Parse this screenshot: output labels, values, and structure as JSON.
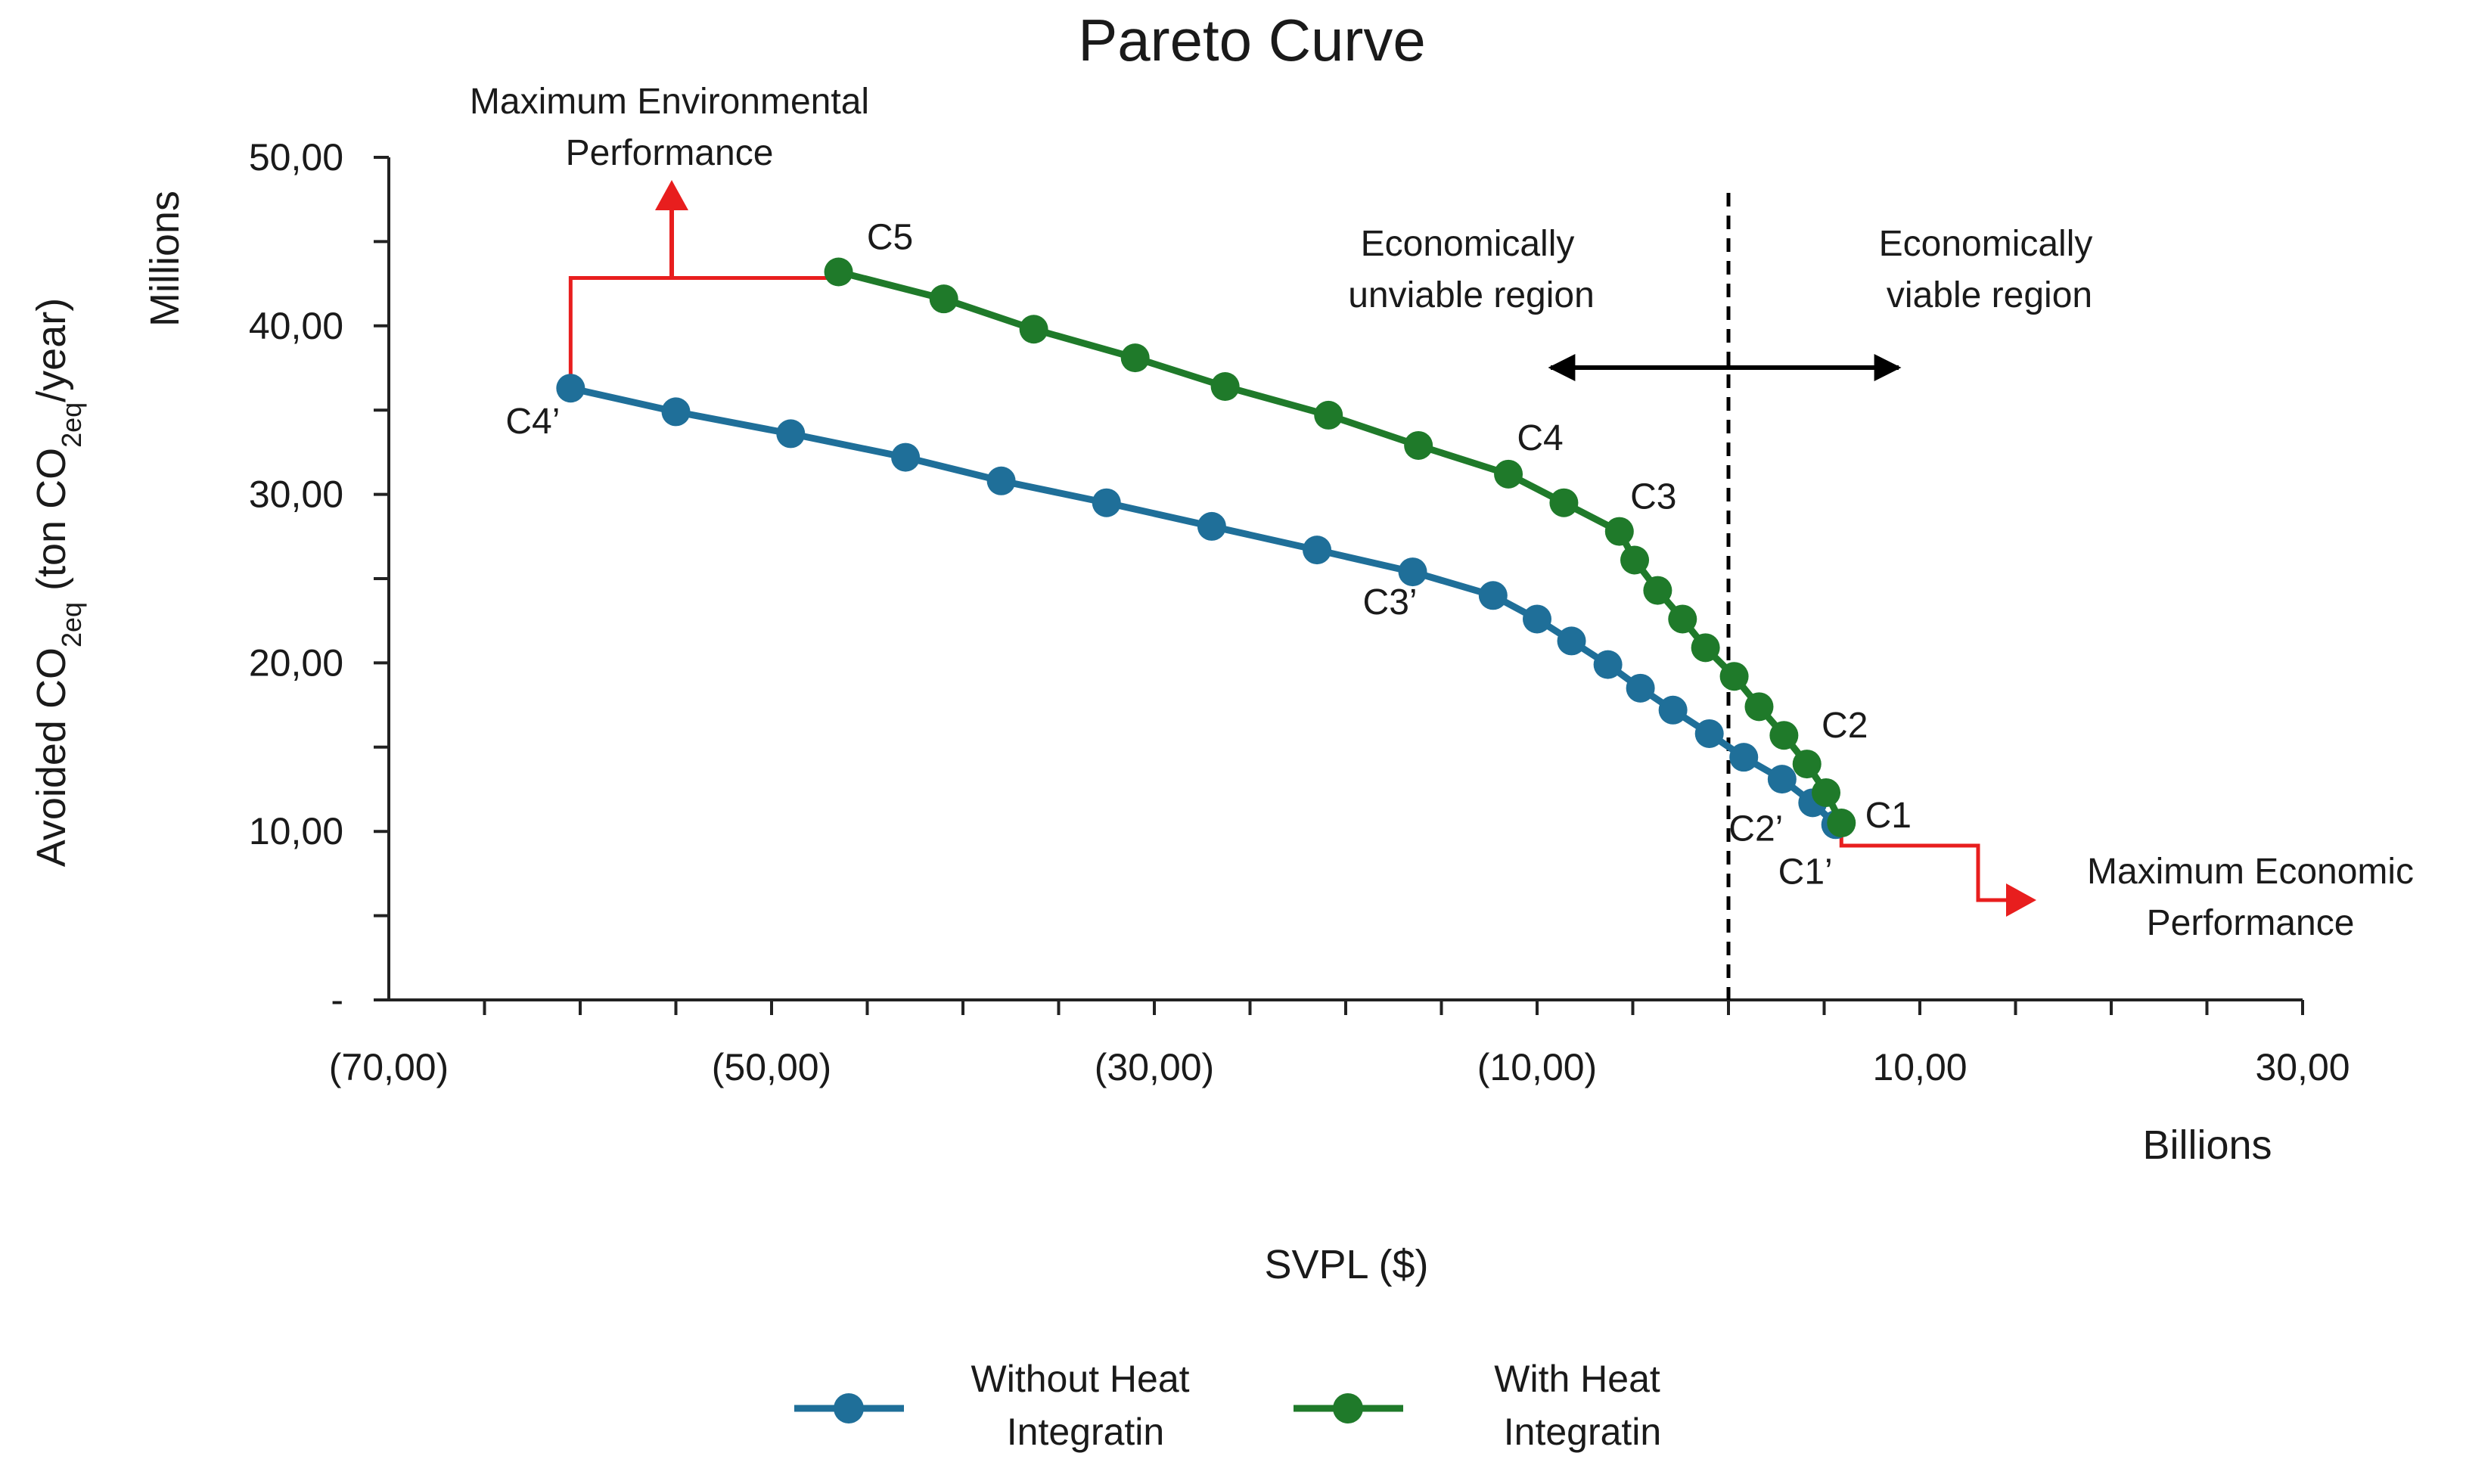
{
  "chart_data": {
    "type": "line",
    "title": "Pareto Curve",
    "xlabel": "SVPL ($)",
    "x_unit_label": "Billions",
    "ylabel": "Avoided CO2eq (ton CO2eq/year)",
    "ylabel_parts": {
      "before": "Avoided CO",
      "sub1": "2eq",
      "middle": " (ton CO",
      "sub2": "2eq",
      "after": "/year)"
    },
    "y_unit_label": "Millions",
    "xlim": [
      -70,
      30
    ],
    "ylim": [
      0,
      50
    ],
    "x_tick_values": [
      -70,
      -50,
      -30,
      -10,
      10,
      30
    ],
    "x_tick_labels": [
      "(70,00)",
      "(50,00)",
      "(30,00)",
      "(10,00)",
      "10,00",
      "30,00"
    ],
    "y_tick_values": [
      0,
      10,
      20,
      30,
      40,
      50
    ],
    "y_tick_labels": [
      "-",
      "10,00",
      "20,00",
      "30,00",
      "40,00",
      "50,00"
    ],
    "series": [
      {
        "name": "Without Heat Integratin",
        "legend_lines": [
          "Without Heat",
          "Integratin"
        ],
        "color": "#1f6f99",
        "x": [
          -60.5,
          -55,
          -49,
          -43,
          -38,
          -32.5,
          -27,
          -21.5,
          -16.5,
          -12.3,
          -10,
          -8.2,
          -6.3,
          -4.6,
          -2.9,
          -1,
          0.8,
          2.8,
          4.4,
          5.6
        ],
        "y": [
          36.3,
          34.9,
          33.6,
          32.2,
          30.8,
          29.5,
          28.1,
          26.7,
          25.4,
          24.0,
          22.6,
          21.3,
          19.9,
          18.5,
          17.2,
          15.8,
          14.4,
          13.1,
          11.7,
          10.4
        ]
      },
      {
        "name": "With Heat Integratin",
        "legend_lines": [
          "With Heat",
          "Integratin"
        ],
        "color": "#1f7a2a",
        "x": [
          -46.5,
          -41,
          -36.3,
          -31,
          -26.3,
          -20.9,
          -16.2,
          -11.5,
          -8.6,
          -5.7,
          -4.9,
          -3.7,
          -2.4,
          -1.2,
          0.3,
          1.6,
          2.9,
          4.1,
          5.1,
          5.9
        ],
        "y": [
          43.2,
          41.6,
          39.8,
          38.1,
          36.4,
          34.7,
          32.9,
          31.2,
          29.5,
          27.8,
          26.1,
          24.3,
          22.6,
          20.9,
          19.2,
          17.4,
          15.7,
          14.0,
          12.3,
          10.5
        ]
      }
    ],
    "point_labels": [
      {
        "text": "C1",
        "x": 5.9,
        "y": 10.5
      },
      {
        "text": "C2",
        "x": 4.1,
        "y": 14.0
      },
      {
        "text": "C3",
        "x": -5.7,
        "y": 27.8
      },
      {
        "text": "C4",
        "x": -11.5,
        "y": 31.2
      },
      {
        "text": "C5",
        "x": -46.5,
        "y": 43.2
      },
      {
        "text": "C1’",
        "x": 5.6,
        "y": 10.4
      },
      {
        "text": "C2’",
        "x": 4.4,
        "y": 11.7
      },
      {
        "text": "C3’",
        "x": -16.5,
        "y": 25.4
      },
      {
        "text": "C4’",
        "x": -60.5,
        "y": 36.3
      }
    ],
    "annotations": {
      "viability_threshold_x": 0,
      "unviable_region_lines": [
        "Economically",
        "unviable region"
      ],
      "viable_region_lines": [
        "Economically",
        "viable region"
      ],
      "max_environmental_lines": [
        "Maximum Environmental",
        "Performance"
      ],
      "max_economic_lines": [
        "Maximum Economic",
        "Performance"
      ],
      "arrow_color": "#e81e1e"
    },
    "grid": false,
    "legend_position": "bottom"
  }
}
